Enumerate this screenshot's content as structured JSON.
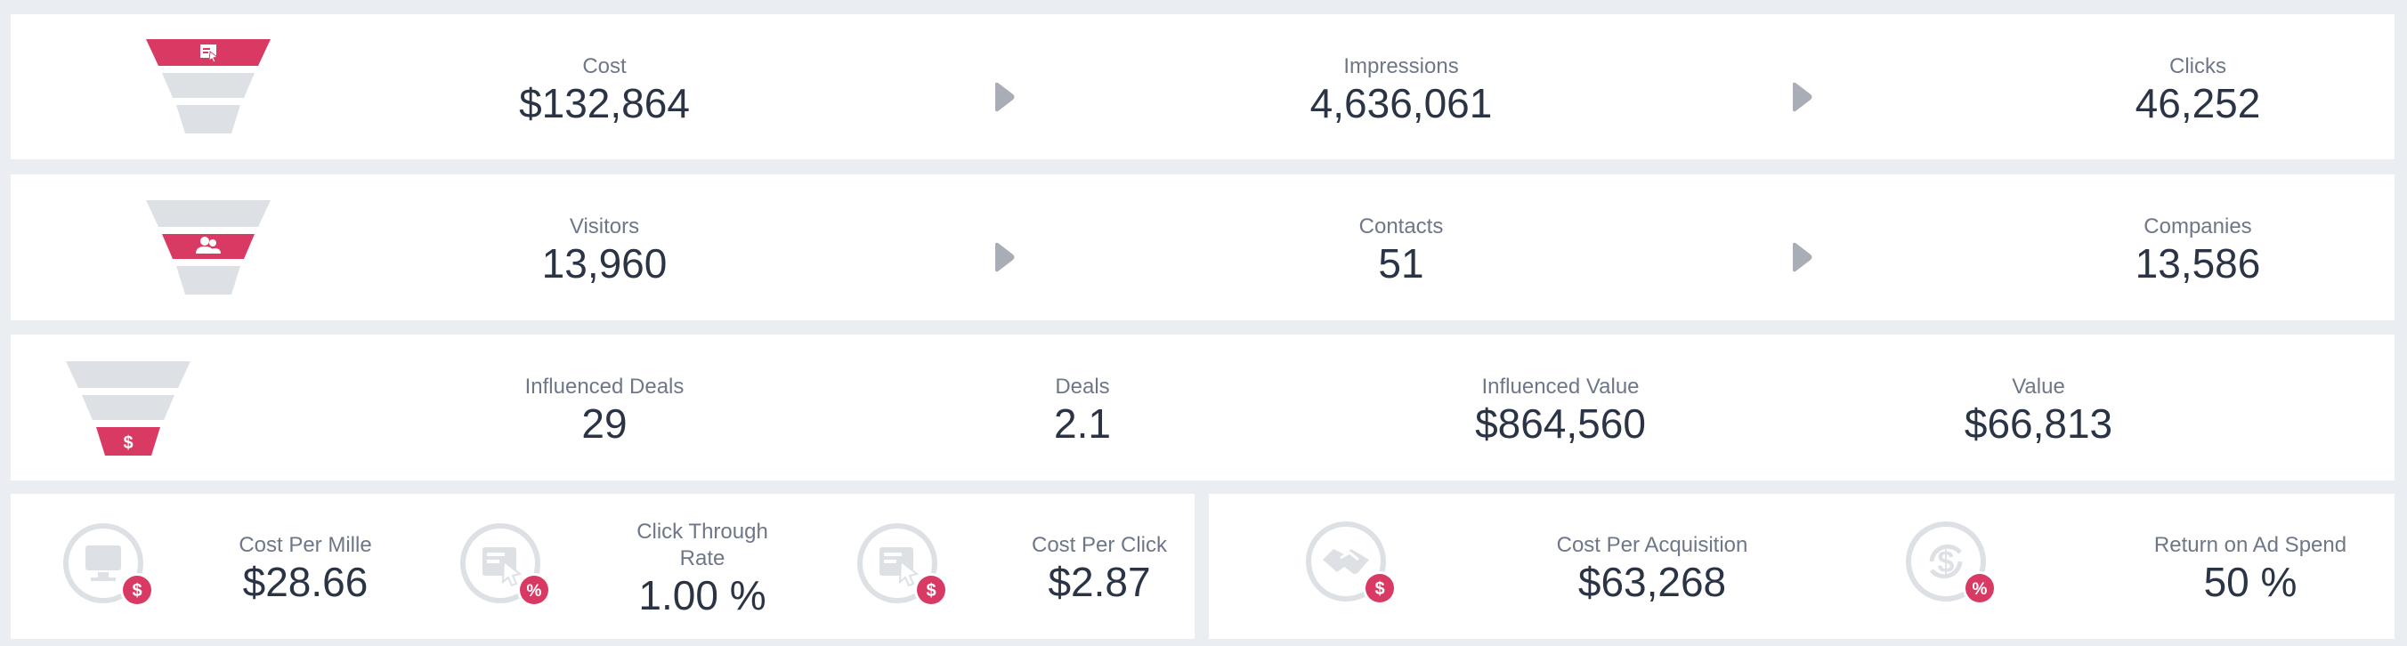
{
  "colors": {
    "accent": "#d83a64",
    "funnel_gray": "#dde1e6",
    "label": "#6e7788",
    "value": "#2a3445",
    "icon_gray": "#dde1e6"
  },
  "funnel_top": {
    "icon": "ad-screen-icon",
    "metrics": [
      {
        "label": "Cost",
        "value": "$132,864"
      },
      {
        "label": "Impressions",
        "value": "4,636,061"
      },
      {
        "label": "Clicks",
        "value": "46,252"
      }
    ]
  },
  "funnel_middle": {
    "icon": "users-icon",
    "metrics": [
      {
        "label": "Visitors",
        "value": "13,960"
      },
      {
        "label": "Contacts",
        "value": "51"
      },
      {
        "label": "Companies",
        "value": "13,586"
      }
    ]
  },
  "funnel_bottom": {
    "icon": "dollar-icon",
    "metrics": [
      {
        "label": "Influenced Deals",
        "value": "29"
      },
      {
        "label": "Deals",
        "value": "2.1"
      },
      {
        "label": "Influenced Value",
        "value": "$864,560"
      },
      {
        "label": "Value",
        "value": "$66,813"
      }
    ]
  },
  "kpis_left": [
    {
      "label": "Cost Per Mille",
      "value": "$28.66",
      "icon": "monitor-dollar-icon",
      "badge": "$"
    },
    {
      "label": "Click Through Rate",
      "value": "1.00 %",
      "icon": "click-percent-icon",
      "badge": "%"
    },
    {
      "label": "Cost Per Click",
      "value": "$2.87",
      "icon": "click-dollar-icon",
      "badge": "$"
    }
  ],
  "kpis_right": [
    {
      "label": "Cost Per Acquisition",
      "value": "$63,268",
      "icon": "handshake-dollar-icon",
      "badge": "$"
    },
    {
      "label": "Return on Ad Spend",
      "value": "50 %",
      "icon": "return-percent-icon",
      "badge": "%"
    }
  ]
}
